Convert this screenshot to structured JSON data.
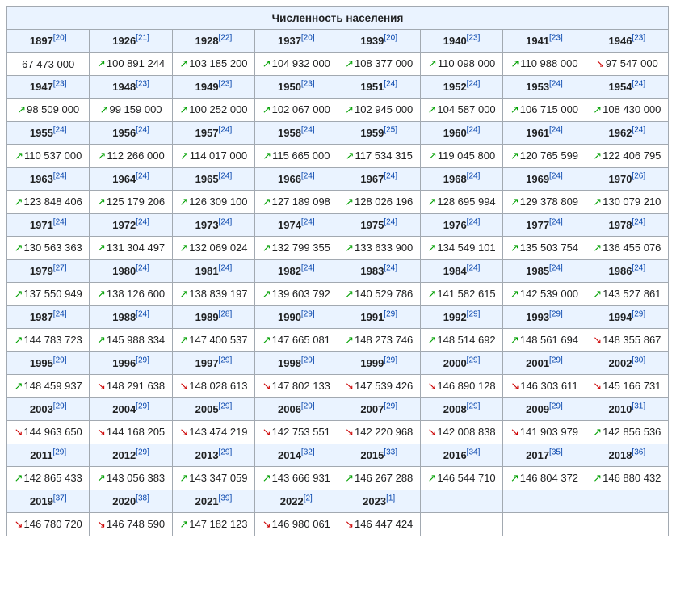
{
  "title": "Численность населения",
  "columns": 8,
  "entries": [
    {
      "year": "1897",
      "ref": "20",
      "value": "67 473 000",
      "trend": null
    },
    {
      "year": "1926",
      "ref": "21",
      "value": "100 891 244",
      "trend": "up"
    },
    {
      "year": "1928",
      "ref": "22",
      "value": "103 185 200",
      "trend": "up"
    },
    {
      "year": "1937",
      "ref": "20",
      "value": "104 932 000",
      "trend": "up"
    },
    {
      "year": "1939",
      "ref": "20",
      "value": "108 377 000",
      "trend": "up"
    },
    {
      "year": "1940",
      "ref": "23",
      "value": "110 098 000",
      "trend": "up"
    },
    {
      "year": "1941",
      "ref": "23",
      "value": "110 988 000",
      "trend": "up"
    },
    {
      "year": "1946",
      "ref": "23",
      "value": "97 547 000",
      "trend": "down"
    },
    {
      "year": "1947",
      "ref": "23",
      "value": "98 509 000",
      "trend": "up"
    },
    {
      "year": "1948",
      "ref": "23",
      "value": "99 159 000",
      "trend": "up"
    },
    {
      "year": "1949",
      "ref": "23",
      "value": "100 252 000",
      "trend": "up"
    },
    {
      "year": "1950",
      "ref": "23",
      "value": "102 067 000",
      "trend": "up"
    },
    {
      "year": "1951",
      "ref": "24",
      "value": "102 945 000",
      "trend": "up"
    },
    {
      "year": "1952",
      "ref": "24",
      "value": "104 587 000",
      "trend": "up"
    },
    {
      "year": "1953",
      "ref": "24",
      "value": "106 715 000",
      "trend": "up"
    },
    {
      "year": "1954",
      "ref": "24",
      "value": "108 430 000",
      "trend": "up"
    },
    {
      "year": "1955",
      "ref": "24",
      "value": "110 537 000",
      "trend": "up"
    },
    {
      "year": "1956",
      "ref": "24",
      "value": "112 266 000",
      "trend": "up"
    },
    {
      "year": "1957",
      "ref": "24",
      "value": "114 017 000",
      "trend": "up"
    },
    {
      "year": "1958",
      "ref": "24",
      "value": "115 665 000",
      "trend": "up"
    },
    {
      "year": "1959",
      "ref": "25",
      "value": "117 534 315",
      "trend": "up"
    },
    {
      "year": "1960",
      "ref": "24",
      "value": "119 045 800",
      "trend": "up"
    },
    {
      "year": "1961",
      "ref": "24",
      "value": "120 765 599",
      "trend": "up"
    },
    {
      "year": "1962",
      "ref": "24",
      "value": "122 406 795",
      "trend": "up"
    },
    {
      "year": "1963",
      "ref": "24",
      "value": "123 848 406",
      "trend": "up"
    },
    {
      "year": "1964",
      "ref": "24",
      "value": "125 179 206",
      "trend": "up"
    },
    {
      "year": "1965",
      "ref": "24",
      "value": "126 309 100",
      "trend": "up"
    },
    {
      "year": "1966",
      "ref": "24",
      "value": "127 189 098",
      "trend": "up"
    },
    {
      "year": "1967",
      "ref": "24",
      "value": "128 026 196",
      "trend": "up"
    },
    {
      "year": "1968",
      "ref": "24",
      "value": "128 695 994",
      "trend": "up"
    },
    {
      "year": "1969",
      "ref": "24",
      "value": "129 378 809",
      "trend": "up"
    },
    {
      "year": "1970",
      "ref": "26",
      "value": "130 079 210",
      "trend": "up"
    },
    {
      "year": "1971",
      "ref": "24",
      "value": "130 563 363",
      "trend": "up"
    },
    {
      "year": "1972",
      "ref": "24",
      "value": "131 304 497",
      "trend": "up"
    },
    {
      "year": "1973",
      "ref": "24",
      "value": "132 069 024",
      "trend": "up"
    },
    {
      "year": "1974",
      "ref": "24",
      "value": "132 799 355",
      "trend": "up"
    },
    {
      "year": "1975",
      "ref": "24",
      "value": "133 633 900",
      "trend": "up"
    },
    {
      "year": "1976",
      "ref": "24",
      "value": "134 549 101",
      "trend": "up"
    },
    {
      "year": "1977",
      "ref": "24",
      "value": "135 503 754",
      "trend": "up"
    },
    {
      "year": "1978",
      "ref": "24",
      "value": "136 455 076",
      "trend": "up"
    },
    {
      "year": "1979",
      "ref": "27",
      "value": "137 550 949",
      "trend": "up"
    },
    {
      "year": "1980",
      "ref": "24",
      "value": "138 126 600",
      "trend": "up"
    },
    {
      "year": "1981",
      "ref": "24",
      "value": "138 839 197",
      "trend": "up"
    },
    {
      "year": "1982",
      "ref": "24",
      "value": "139 603 792",
      "trend": "up"
    },
    {
      "year": "1983",
      "ref": "24",
      "value": "140 529 786",
      "trend": "up"
    },
    {
      "year": "1984",
      "ref": "24",
      "value": "141 582 615",
      "trend": "up"
    },
    {
      "year": "1985",
      "ref": "24",
      "value": "142 539 000",
      "trend": "up"
    },
    {
      "year": "1986",
      "ref": "24",
      "value": "143 527 861",
      "trend": "up"
    },
    {
      "year": "1987",
      "ref": "24",
      "value": "144 783 723",
      "trend": "up"
    },
    {
      "year": "1988",
      "ref": "24",
      "value": "145 988 334",
      "trend": "up"
    },
    {
      "year": "1989",
      "ref": "28",
      "value": "147 400 537",
      "trend": "up"
    },
    {
      "year": "1990",
      "ref": "29",
      "value": "147 665 081",
      "trend": "up"
    },
    {
      "year": "1991",
      "ref": "29",
      "value": "148 273 746",
      "trend": "up"
    },
    {
      "year": "1992",
      "ref": "29",
      "value": "148 514 692",
      "trend": "up"
    },
    {
      "year": "1993",
      "ref": "29",
      "value": "148 561 694",
      "trend": "up"
    },
    {
      "year": "1994",
      "ref": "29",
      "value": "148 355 867",
      "trend": "down"
    },
    {
      "year": "1995",
      "ref": "29",
      "value": "148 459 937",
      "trend": "up"
    },
    {
      "year": "1996",
      "ref": "29",
      "value": "148 291 638",
      "trend": "down"
    },
    {
      "year": "1997",
      "ref": "29",
      "value": "148 028 613",
      "trend": "down"
    },
    {
      "year": "1998",
      "ref": "29",
      "value": "147 802 133",
      "trend": "down"
    },
    {
      "year": "1999",
      "ref": "29",
      "value": "147 539 426",
      "trend": "down"
    },
    {
      "year": "2000",
      "ref": "29",
      "value": "146 890 128",
      "trend": "down"
    },
    {
      "year": "2001",
      "ref": "29",
      "value": "146 303 611",
      "trend": "down"
    },
    {
      "year": "2002",
      "ref": "30",
      "value": "145 166 731",
      "trend": "down"
    },
    {
      "year": "2003",
      "ref": "29",
      "value": "144 963 650",
      "trend": "down"
    },
    {
      "year": "2004",
      "ref": "29",
      "value": "144 168 205",
      "trend": "down"
    },
    {
      "year": "2005",
      "ref": "29",
      "value": "143 474 219",
      "trend": "down"
    },
    {
      "year": "2006",
      "ref": "29",
      "value": "142 753 551",
      "trend": "down"
    },
    {
      "year": "2007",
      "ref": "29",
      "value": "142 220 968",
      "trend": "down"
    },
    {
      "year": "2008",
      "ref": "29",
      "value": "142 008 838",
      "trend": "down"
    },
    {
      "year": "2009",
      "ref": "29",
      "value": "141 903 979",
      "trend": "down"
    },
    {
      "year": "2010",
      "ref": "31",
      "value": "142 856 536",
      "trend": "up"
    },
    {
      "year": "2011",
      "ref": "29",
      "value": "142 865 433",
      "trend": "up"
    },
    {
      "year": "2012",
      "ref": "29",
      "value": "143 056 383",
      "trend": "up"
    },
    {
      "year": "2013",
      "ref": "29",
      "value": "143 347 059",
      "trend": "up"
    },
    {
      "year": "2014",
      "ref": "32",
      "value": "143 666 931",
      "trend": "up"
    },
    {
      "year": "2015",
      "ref": "33",
      "value": "146 267 288",
      "trend": "up"
    },
    {
      "year": "2016",
      "ref": "34",
      "value": "146 544 710",
      "trend": "up"
    },
    {
      "year": "2017",
      "ref": "35",
      "value": "146 804 372",
      "trend": "up"
    },
    {
      "year": "2018",
      "ref": "36",
      "value": "146 880 432",
      "trend": "up"
    },
    {
      "year": "2019",
      "ref": "37",
      "value": "146 780 720",
      "trend": "down"
    },
    {
      "year": "2020",
      "ref": "38",
      "value": "146 748 590",
      "trend": "down"
    },
    {
      "year": "2021",
      "ref": "39",
      "value": "147 182 123",
      "trend": "up"
    },
    {
      "year": "2022",
      "ref": "2",
      "value": "146 980 061",
      "trend": "down"
    },
    {
      "year": "2023",
      "ref": "1",
      "value": "146 447 424",
      "trend": "down"
    }
  ],
  "style": {
    "header_bg": "#eaf3ff",
    "border_color": "#a2a9b1",
    "ref_color": "#0645ad",
    "up_color": "#00a000",
    "down_color": "#cc0000",
    "up_glyph": "↗",
    "down_glyph": "↘"
  }
}
